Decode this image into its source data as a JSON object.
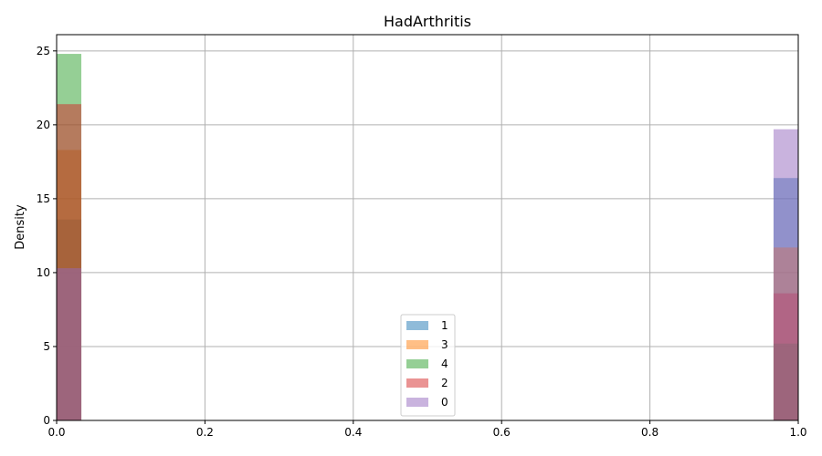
{
  "chart_data": {
    "type": "histogram",
    "title": "HadArthritis",
    "xlabel": "",
    "ylabel": "Density",
    "xlim": [
      0,
      1
    ],
    "ylim": [
      0,
      26.1
    ],
    "xticks": [
      "0.0",
      "0.2",
      "0.4",
      "0.6",
      "0.8",
      "1.0"
    ],
    "yticks": [
      "0",
      "5",
      "10",
      "15",
      "20",
      "25"
    ],
    "grid": true,
    "legend_position": "lower-center",
    "bin_width": 0.0333,
    "bins_x": [
      0,
      0.9667
    ],
    "series": [
      {
        "name": "1",
        "color": "#1f77b4",
        "values": [
          13.6,
          16.4
        ]
      },
      {
        "name": "3",
        "color": "#ff7f0e",
        "values": [
          18.3,
          11.7
        ]
      },
      {
        "name": "4",
        "color": "#2ca02c",
        "values": [
          24.8,
          5.2
        ]
      },
      {
        "name": "2",
        "color": "#d62728",
        "values": [
          21.4,
          8.6
        ]
      },
      {
        "name": "0",
        "color": "#9467bd",
        "values": [
          10.3,
          19.7
        ]
      }
    ]
  }
}
